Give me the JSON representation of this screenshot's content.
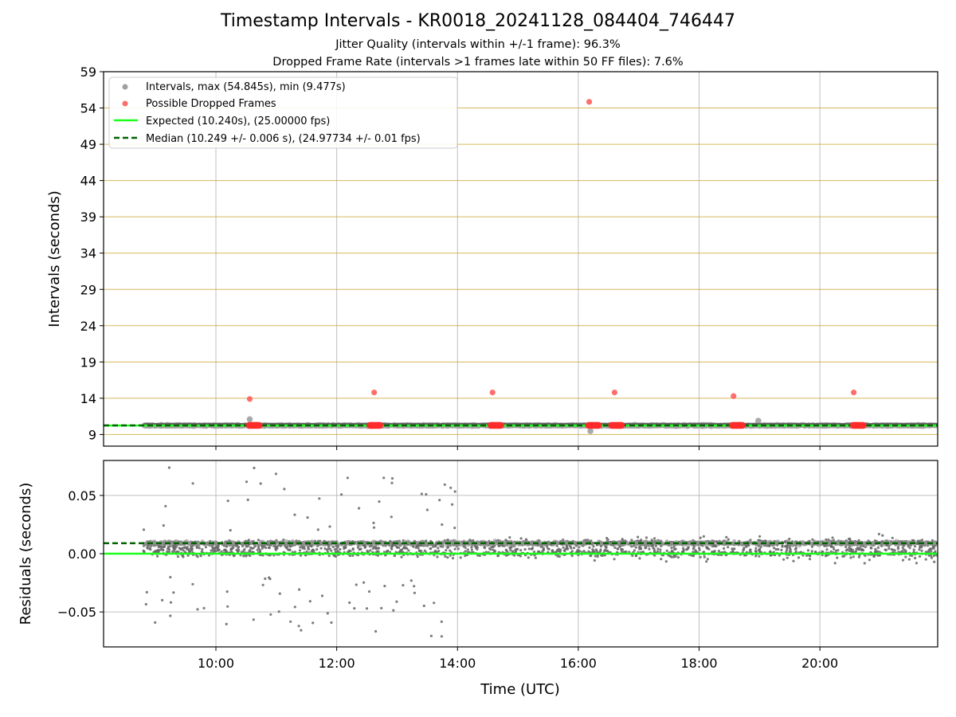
{
  "chart_data": [
    {
      "type": "scatter",
      "title": "Timestamp Intervals - KR0018_20241128_084404_746447",
      "subtitle_1": "Jitter Quality (intervals within +/-1 frame): 96.3%",
      "subtitle_2": "Dropped Frame Rate (intervals >1 frames late within 50 FF files): 7.6%",
      "ylabel": "Intervals (seconds)",
      "ylim": [
        7.4,
        59
      ],
      "xlim_hours": [
        8.14,
        21.95
      ],
      "yticks": [
        "9",
        "14",
        "19",
        "24",
        "29",
        "34",
        "39",
        "44",
        "49",
        "54",
        "59"
      ],
      "legend_position": "upper-left",
      "legend": [
        {
          "label": "Intervals, max (54.845s), min (9.477s)",
          "color": "#a0a0a0",
          "marker": "dot"
        },
        {
          "label": "Possible Dropped Frames",
          "color": "#ff5555",
          "marker": "dot"
        },
        {
          "label": "Expected (10.240s), (25.00000 fps)",
          "color": "#1aff1a",
          "marker": "solid-line"
        },
        {
          "label": "Median (10.249 +/- 0.006 s), (24.97734 +/- 0.01 fps)",
          "color": "#006400",
          "marker": "dashed-line"
        }
      ],
      "expected": 10.24,
      "median": 10.249,
      "interval_range": [
        8.8,
        21.95
      ],
      "interval_outliers": [
        [
          10.56,
          11.1
        ],
        [
          16.2,
          9.477
        ],
        [
          18.98,
          10.9
        ]
      ],
      "dropped_frames": [
        [
          10.56,
          13.9
        ],
        [
          12.62,
          14.8
        ],
        [
          14.58,
          14.8
        ],
        [
          16.18,
          54.845
        ],
        [
          16.6,
          14.8
        ],
        [
          18.57,
          14.3
        ],
        [
          20.56,
          14.8
        ]
      ],
      "dropped_clusters": [
        [
          10.55,
          10.72
        ],
        [
          12.55,
          12.73
        ],
        [
          14.55,
          14.72
        ],
        [
          16.17,
          16.35
        ],
        [
          16.55,
          16.72
        ],
        [
          18.55,
          18.72
        ],
        [
          20.55,
          20.72
        ]
      ],
      "grid": true
    },
    {
      "type": "scatter",
      "xlabel": "Time (UTC)",
      "ylabel": "Residuals (seconds)",
      "ylim": [
        -0.08,
        0.08
      ],
      "yticks": [
        {
          "value": 0.05,
          "label": "0.05"
        },
        {
          "value": 0.0,
          "label": "0.00"
        },
        {
          "value": -0.05,
          "label": "−0.05"
        }
      ],
      "xticks": [
        {
          "hour": 10,
          "label": "10:00"
        },
        {
          "hour": 12,
          "label": "12:00"
        },
        {
          "hour": 14,
          "label": "14:00"
        },
        {
          "hour": 16,
          "label": "16:00"
        },
        {
          "hour": 18,
          "label": "18:00"
        },
        {
          "hour": 20,
          "label": "20:00"
        }
      ],
      "expected_residual": 0.0,
      "median_residual": 0.009,
      "residual_range": [
        8.8,
        21.95
      ],
      "grid": true
    }
  ]
}
